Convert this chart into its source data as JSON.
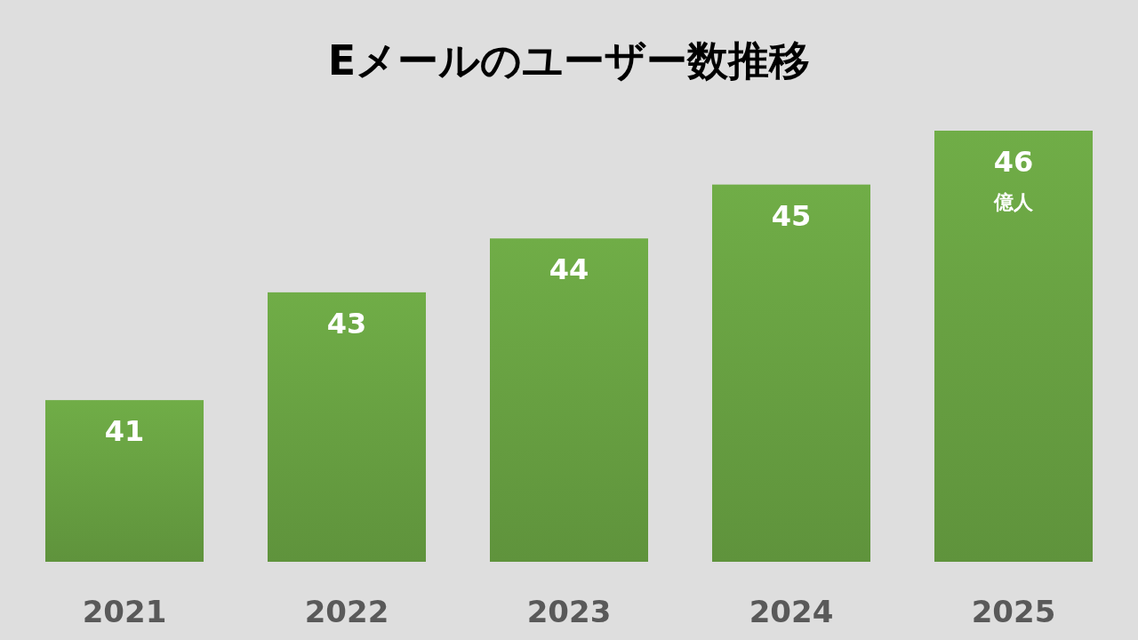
{
  "chart_data": {
    "type": "bar",
    "title": "Eメールのユーザー数推移",
    "categories": [
      "2021",
      "2022",
      "2023",
      "2024",
      "2025"
    ],
    "values": [
      41,
      43,
      44,
      45,
      46
    ],
    "color": "#70ad47",
    "ylim": [
      38,
      46
    ],
    "tick_labels": "x",
    "data_labels": true,
    "annotations": [
      "億人"
    ]
  }
}
